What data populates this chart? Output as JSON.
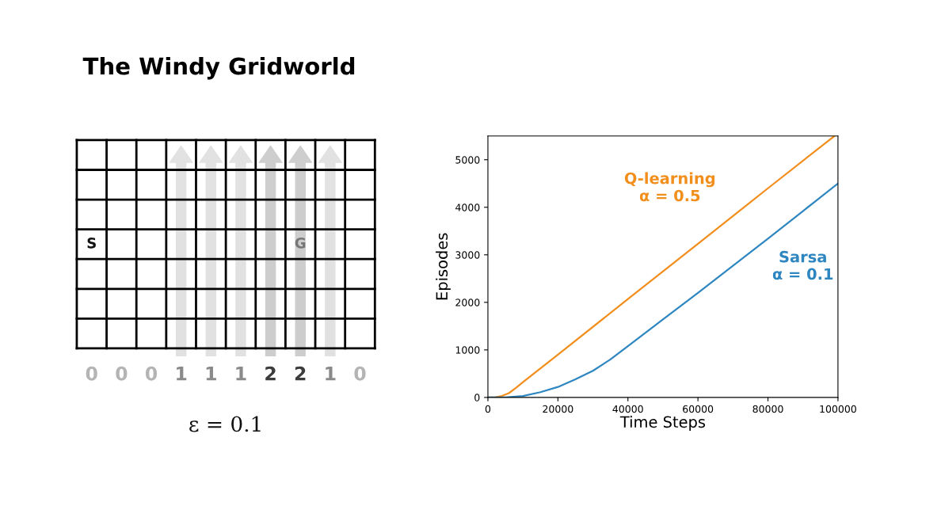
{
  "chart_data": [
    {
      "type": "other",
      "title": "The Windy Gridworld",
      "categories": [
        "0",
        "0",
        "0",
        "1",
        "1",
        "1",
        "2",
        "2",
        "1",
        "0"
      ],
      "colors": [
        "#b4b4b4",
        "#b4b4b4",
        "#b4b4b4",
        "#8a8a8a",
        "#8a8a8a",
        "#8a8a8a",
        "#3c3c3c",
        "#3c3c3c",
        "#8a8a8a",
        "#b4b4b4"
      ],
      "annotations": [
        "S",
        "G",
        "ε = 0.1"
      ]
    },
    {
      "type": "line",
      "xlabel": "Time Steps",
      "ylabel": "Episodes",
      "xlim": [
        0,
        100000
      ],
      "ylim": [
        0,
        5500
      ],
      "xticks": [
        0,
        20000,
        40000,
        60000,
        80000,
        100000
      ],
      "yticks": [
        0,
        1000,
        2000,
        3000,
        4000,
        5000
      ],
      "grid": false,
      "legend": false,
      "series": [
        {
          "name": "Q-learning\nα = 0.5",
          "color": "#f28e1c",
          "x": [
            0,
            2000,
            4000,
            6000,
            8000,
            10000,
            20000,
            40000,
            60000,
            80000,
            99000
          ],
          "values": [
            0,
            0,
            30,
            90,
            200,
            320,
            900,
            2070,
            3230,
            4400,
            5500
          ]
        },
        {
          "name": "Sarsa\nα = 0.1",
          "color": "#2e86c1",
          "x": [
            0,
            5000,
            10000,
            15000,
            20000,
            25000,
            30000,
            35000,
            40000,
            50000,
            60000,
            70000,
            80000,
            90000,
            100000
          ],
          "values": [
            0,
            0,
            30,
            110,
            220,
            380,
            560,
            800,
            1080,
            1640,
            2200,
            2770,
            3340,
            3920,
            4500
          ]
        }
      ]
    }
  ]
}
